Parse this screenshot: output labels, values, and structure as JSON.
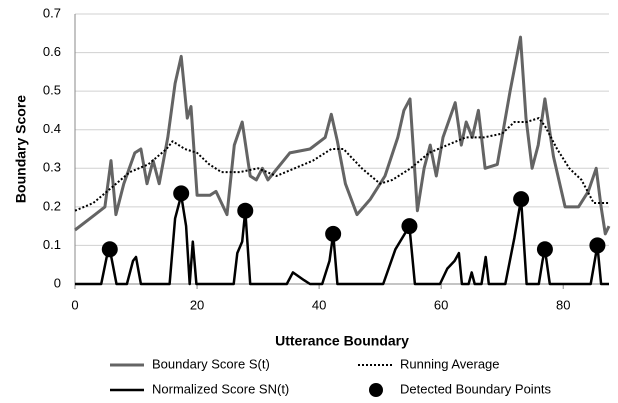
{
  "chart_data": {
    "type": "line",
    "xlabel": "Utterance Boundary",
    "ylabel": "Boundary Score",
    "xlim": [
      0,
      87.5
    ],
    "xticks": [
      0,
      20,
      40,
      60,
      80
    ],
    "ylim": [
      0,
      0.7
    ],
    "yticks": [
      0,
      0.1,
      0.2,
      0.3,
      0.4,
      0.5,
      0.6,
      0.7
    ],
    "grid": true,
    "series": [
      {
        "name": "Boundary Score S(t)",
        "color": "#646464",
        "style": "solid",
        "x": [
          0,
          3.3,
          4.9,
          5.9,
          6.7,
          8,
          9.8,
          10.8,
          11.8,
          12.8,
          13.8,
          15.2,
          16.4,
          17.4,
          18.4,
          19,
          20,
          22.1,
          23.1,
          24.9,
          26.1,
          27.4,
          28.7,
          29.7,
          30.7,
          31.6,
          35.2,
          38.5,
          41,
          42,
          43,
          44.3,
          46.2,
          48.4,
          50.8,
          52.9,
          53.9,
          54.9,
          56.1,
          57.2,
          58.2,
          59.2,
          60.3,
          62.3,
          63.3,
          64.1,
          65.1,
          66.1,
          67.2,
          69.2,
          71.3,
          73,
          73.9,
          74.9,
          75.9,
          77,
          78.4,
          80.3,
          82.5,
          84.1,
          85.4,
          86.2,
          86.9,
          87.5
        ],
        "values": [
          0.14,
          0.18,
          0.2,
          0.32,
          0.18,
          0.26,
          0.34,
          0.35,
          0.26,
          0.32,
          0.26,
          0.38,
          0.52,
          0.59,
          0.43,
          0.46,
          0.23,
          0.23,
          0.24,
          0.18,
          0.36,
          0.42,
          0.28,
          0.27,
          0.3,
          0.27,
          0.34,
          0.35,
          0.38,
          0.44,
          0.37,
          0.26,
          0.18,
          0.22,
          0.28,
          0.38,
          0.45,
          0.48,
          0.19,
          0.3,
          0.36,
          0.28,
          0.38,
          0.47,
          0.36,
          0.42,
          0.38,
          0.45,
          0.3,
          0.31,
          0.5,
          0.64,
          0.43,
          0.3,
          0.36,
          0.48,
          0.33,
          0.2,
          0.2,
          0.24,
          0.3,
          0.2,
          0.13,
          0.15
        ]
      },
      {
        "name": "Running Average",
        "color": "#000000",
        "style": "dotted",
        "x": [
          0,
          3,
          6,
          9,
          12,
          15,
          16,
          18,
          20,
          22,
          24,
          27,
          30,
          33,
          36,
          39,
          42,
          44,
          47,
          50,
          52,
          55,
          58,
          61,
          64,
          67,
          70,
          72,
          74,
          76,
          77,
          79,
          81,
          83,
          85,
          87.5
        ],
        "values": [
          0.19,
          0.21,
          0.25,
          0.29,
          0.31,
          0.35,
          0.37,
          0.35,
          0.34,
          0.31,
          0.29,
          0.29,
          0.3,
          0.28,
          0.3,
          0.32,
          0.35,
          0.35,
          0.3,
          0.26,
          0.27,
          0.3,
          0.34,
          0.36,
          0.38,
          0.38,
          0.39,
          0.42,
          0.42,
          0.43,
          0.41,
          0.35,
          0.3,
          0.27,
          0.21,
          0.21
        ]
      },
      {
        "name": "Normalized Score SN(t)",
        "color": "#000000",
        "style": "solid",
        "x": [
          0,
          4.3,
          5.2,
          5.7,
          6.2,
          6.8,
          8.5,
          9.5,
          10,
          10.8,
          15.5,
          16.4,
          17.4,
          18.2,
          18.8,
          19.3,
          19.9,
          26,
          26.6,
          27.4,
          27.9,
          28.7,
          34.7,
          35.7,
          37.5,
          38.5,
          40.5,
          41.7,
          42.3,
          43,
          50.5,
          52.5,
          54.8,
          55.7,
          59.8,
          61,
          62.2,
          62.9,
          63.4,
          64.5,
          65,
          65.5,
          66.6,
          67.3,
          67.8,
          70.5,
          72,
          73.1,
          74,
          76,
          76.6,
          77,
          77.8,
          84.5,
          85.6,
          86.2,
          87.5
        ],
        "values": [
          0,
          0,
          0.07,
          0.09,
          0.05,
          0,
          0,
          0.06,
          0.07,
          0,
          0,
          0.17,
          0.23,
          0.15,
          0,
          0.11,
          0,
          0,
          0.08,
          0.11,
          0.19,
          0,
          0,
          0.03,
          0.01,
          0,
          0,
          0.06,
          0.13,
          0,
          0,
          0.09,
          0.15,
          0,
          0,
          0.04,
          0.06,
          0.08,
          0,
          0,
          0.03,
          0,
          0,
          0.07,
          0,
          0,
          0.12,
          0.22,
          0,
          0,
          0.06,
          0.09,
          0,
          0,
          0.1,
          0,
          0
        ]
      },
      {
        "name": "Detected Boundary Points",
        "color": "#000000",
        "style": "dots",
        "x": [
          5.7,
          17.4,
          27.9,
          42.3,
          54.8,
          73.1,
          77,
          85.6
        ],
        "values": [
          0.09,
          0.235,
          0.19,
          0.13,
          0.15,
          0.22,
          0.09,
          0.1
        ]
      }
    ]
  }
}
